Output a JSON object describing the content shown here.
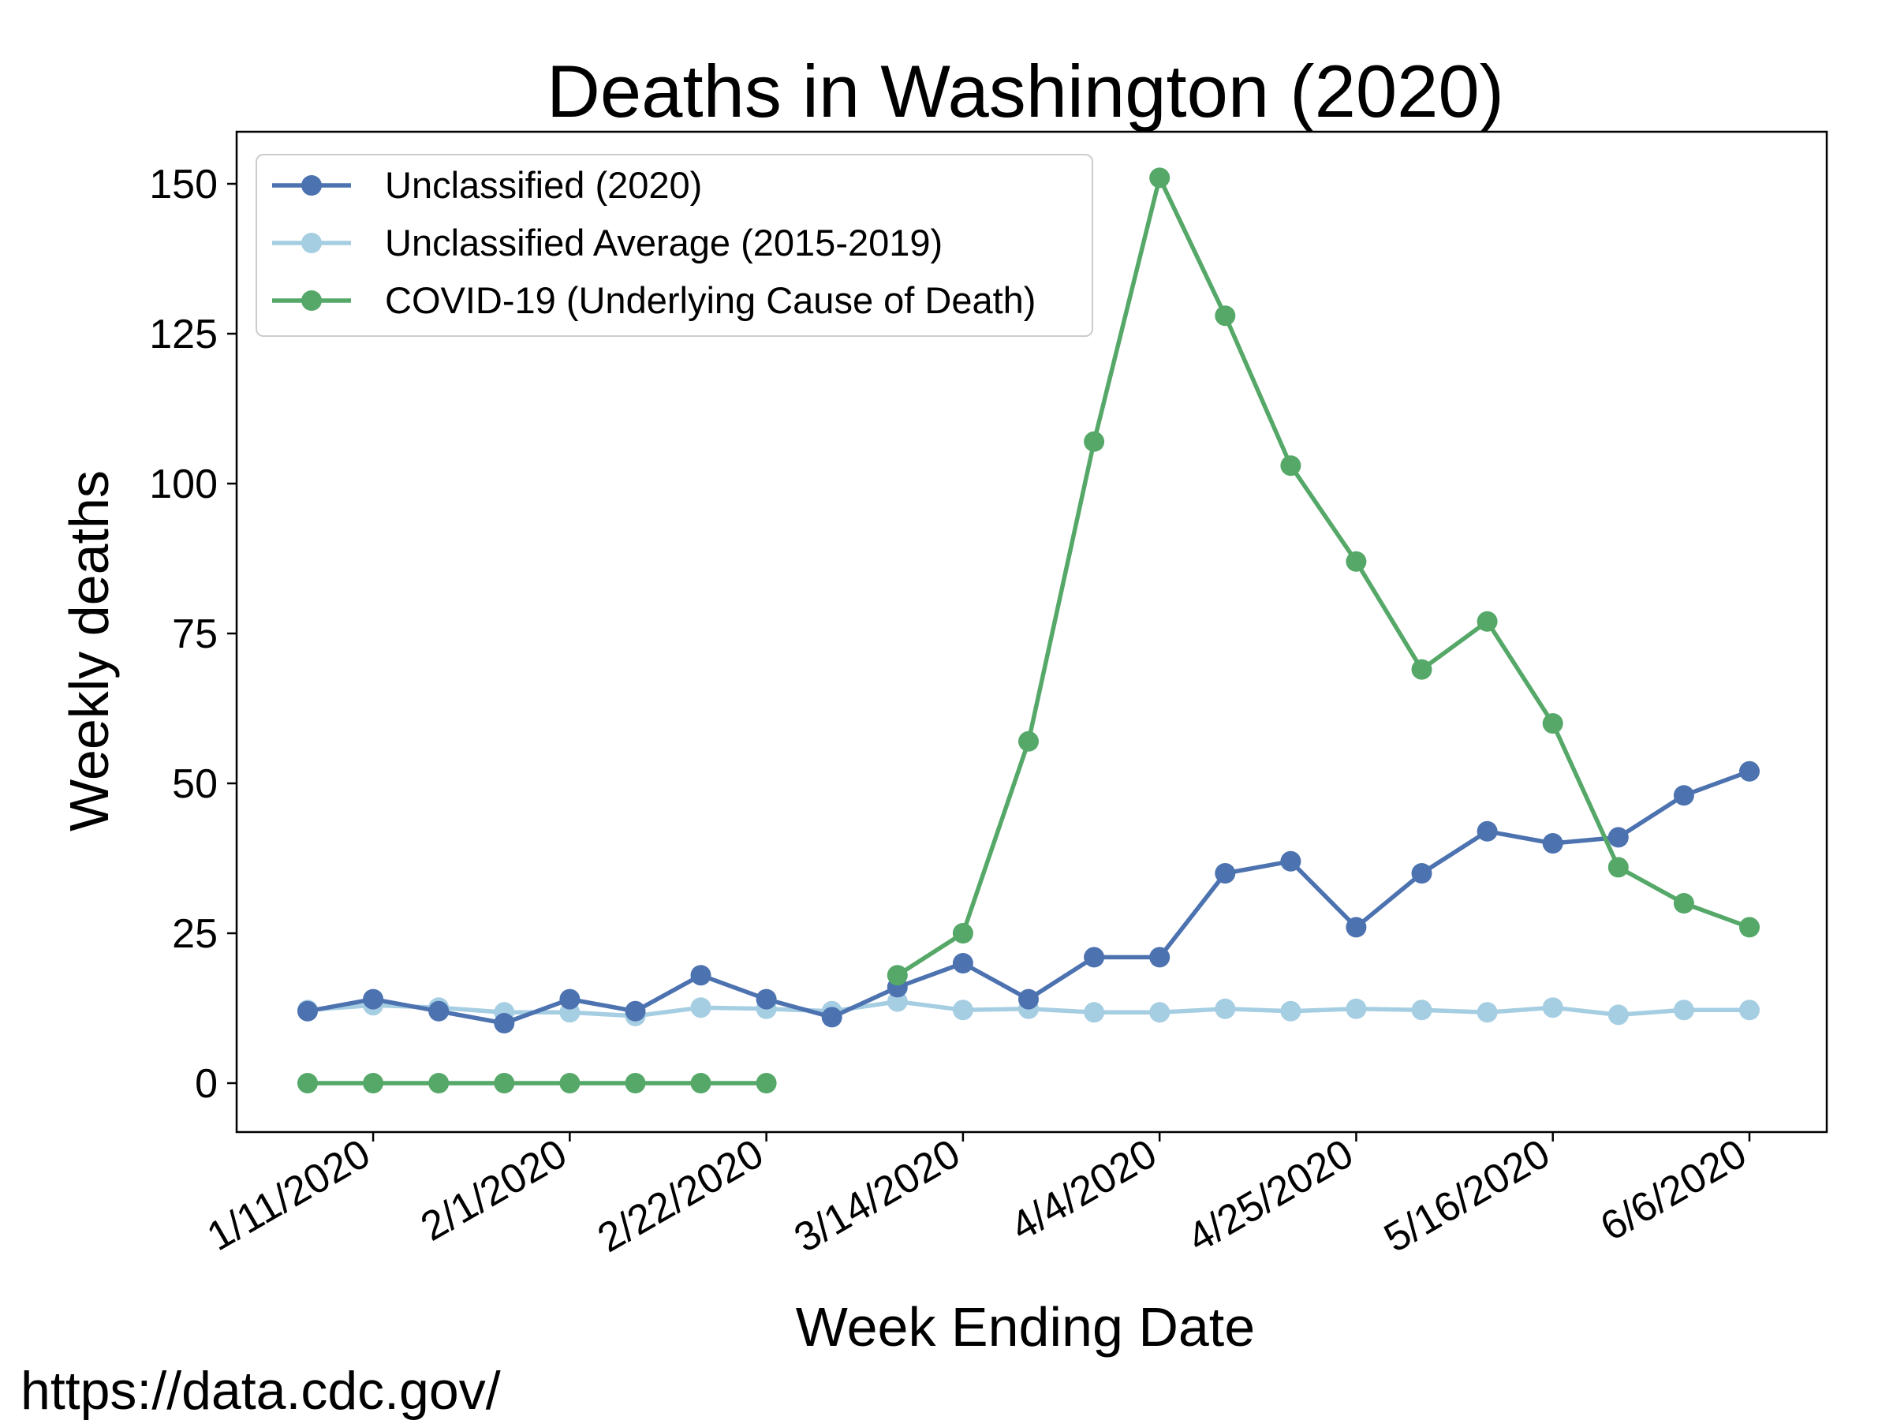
{
  "chart_data": {
    "type": "line",
    "title": "Deaths in Washington (2020)",
    "xlabel": "Week Ending Date",
    "ylabel": "Weekly deaths",
    "x": [
      "1/4/2020",
      "1/11/2020",
      "1/18/2020",
      "1/25/2020",
      "2/1/2020",
      "2/8/2020",
      "2/15/2020",
      "2/22/2020",
      "2/29/2020",
      "3/7/2020",
      "3/14/2020",
      "3/21/2020",
      "3/28/2020",
      "4/4/2020",
      "4/11/2020",
      "4/18/2020",
      "4/25/2020",
      "5/2/2020",
      "5/9/2020",
      "5/16/2020",
      "5/23/2020",
      "5/30/2020",
      "6/6/2020"
    ],
    "x_tick_labels": [
      "1/11/2020",
      "2/1/2020",
      "2/22/2020",
      "3/14/2020",
      "4/4/2020",
      "4/25/2020",
      "5/16/2020",
      "6/6/2020"
    ],
    "yticks": [
      0,
      25,
      50,
      75,
      100,
      125,
      150
    ],
    "ylim": [
      -7.5,
      158.5
    ],
    "grid": false,
    "legend_position": "top-left",
    "series": [
      {
        "name": "Unclassified (2020)",
        "color": "#4c72b0",
        "values": [
          12,
          14,
          12,
          10,
          14,
          12,
          18,
          14,
          11,
          16,
          20,
          14,
          21,
          21,
          35,
          37,
          26,
          35,
          42,
          40,
          41,
          48,
          52
        ]
      },
      {
        "name": "Unclassified Average (2015-2019)",
        "color": "#a6cee3",
        "values": [
          12.2,
          13,
          12.6,
          11.8,
          11.8,
          11.2,
          12.6,
          12.4,
          12,
          13.6,
          12.2,
          12.4,
          11.8,
          11.8,
          12.4,
          12,
          12.4,
          12.2,
          11.8,
          12.6,
          11.4,
          12.2,
          12.2
        ]
      },
      {
        "name": "COVID-19 (Underlying Cause of Death)",
        "color": "#55a868",
        "values": [
          0,
          0,
          0,
          0,
          0,
          0,
          0,
          0,
          null,
          18,
          25,
          57,
          107,
          151,
          128,
          103,
          87,
          69,
          77,
          60,
          36,
          30,
          26
        ]
      }
    ]
  },
  "source_note": "https://data.cdc.gov/"
}
